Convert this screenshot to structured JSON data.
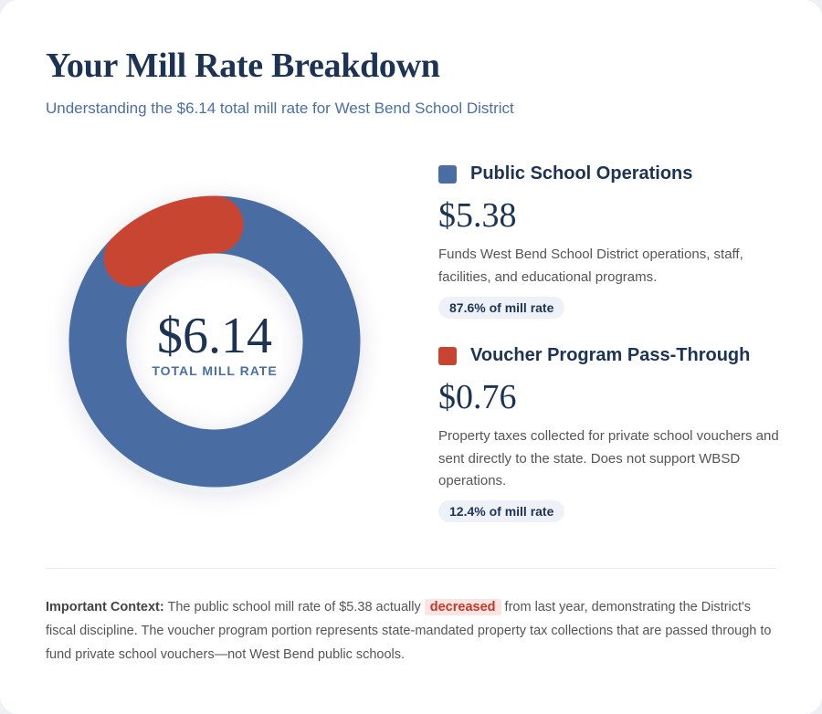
{
  "header": {
    "title": "Your Mill Rate Breakdown",
    "subtitle": "Understanding the $6.14 total mill rate for West Bend School District"
  },
  "chart_data": {
    "type": "pie",
    "categories": [
      "Public School Operations",
      "Voucher Program Pass-Through"
    ],
    "values": [
      5.38,
      0.76
    ],
    "value_labels": [
      "$5.38",
      "$0.76"
    ],
    "colors": [
      "#4a6da3",
      "#c84432"
    ],
    "center_value": "$6.14",
    "center_label": "TOTAL MILL RATE",
    "descriptions": [
      "Funds West Bend School District operations, staff, facilities, and educational programs.",
      "Property taxes collected for private school vouchers and sent directly to the state. Does not support WBSD operations."
    ],
    "shares": [
      "87.6% of mill rate",
      "12.4% of mill rate"
    ]
  },
  "context": {
    "label": "Important Context:",
    "before": "The public school mill rate of $5.38 actually",
    "highlight": "decreased",
    "after": "from last year, demonstrating the District's fiscal discipline. The voucher program portion represents state-mandated property tax collections that are passed through to fund private school vouchers—not West Bend public schools."
  }
}
